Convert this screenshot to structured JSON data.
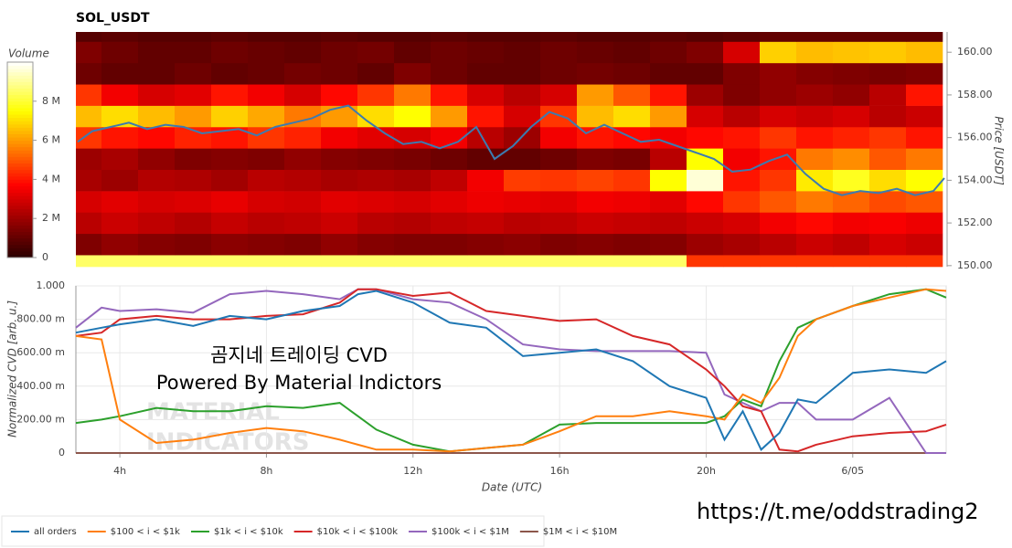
{
  "chart_data": [
    {
      "type": "heatmap",
      "title": "SOL_USDT",
      "x": [
        3,
        4,
        5,
        6,
        7,
        8,
        9,
        10,
        11,
        12,
        13,
        14,
        15,
        16,
        17,
        18,
        19,
        20,
        21,
        22,
        23,
        24,
        25,
        26
      ],
      "y": [
        150,
        151,
        152,
        153,
        154,
        155,
        156,
        157,
        158,
        159,
        160,
        161
      ],
      "z": [
        [
          8500000,
          8500000,
          8500000,
          8500000,
          8500000,
          8500000,
          8500000,
          8500000,
          8500000,
          8500000,
          8500000,
          8500000,
          8500000,
          8500000,
          8500000,
          8500000,
          8500000,
          4500000,
          4500000,
          4500000,
          4500000,
          4500000,
          4500000,
          4500000
        ],
        [
          1500000,
          1800000,
          1600000,
          1500000,
          1700000,
          1600000,
          1500000,
          1800000,
          1600000,
          1500000,
          1500000,
          1600000,
          1700000,
          1500000,
          1600000,
          1500000,
          1600000,
          2000000,
          2200000,
          2500000,
          2800000,
          2600000,
          3000000,
          2800000
        ],
        [
          2500000,
          2800000,
          2600000,
          2400000,
          2700000,
          2500000,
          2600000,
          2800000,
          2500000,
          2400000,
          2600000,
          2700000,
          2500000,
          2600000,
          2800000,
          2700000,
          2600000,
          2800000,
          3000000,
          3500000,
          3800000,
          3500000,
          3600000,
          3400000
        ],
        [
          3000000,
          3200000,
          3000000,
          3100000,
          3300000,
          3000000,
          2900000,
          3200000,
          3100000,
          3000000,
          3200000,
          3400000,
          3300000,
          3200000,
          3500000,
          3400000,
          3200000,
          3800000,
          4500000,
          5000000,
          5500000,
          5200000,
          4800000,
          5000000
        ],
        [
          2200000,
          2000000,
          2400000,
          2300000,
          2100000,
          2500000,
          2400000,
          2200000,
          2300000,
          2200000,
          2600000,
          3500000,
          4600000,
          4500000,
          4700000,
          4500000,
          7500000,
          9600000,
          4000000,
          4500000,
          7200000,
          7800000,
          7000000,
          7500000
        ],
        [
          2000000,
          2200000,
          1800000,
          1500000,
          1600000,
          1500000,
          1800000,
          1600000,
          1500000,
          1400000,
          1200000,
          1000000,
          1000000,
          1200000,
          1500000,
          1400000,
          2500000,
          7500000,
          3500000,
          4000000,
          5500000,
          5800000,
          5000000,
          5500000
        ],
        [
          4500000,
          4000000,
          3800000,
          4200000,
          4000000,
          4500000,
          4200000,
          3500000,
          3200000,
          3000000,
          3500000,
          2500000,
          2000000,
          3500000,
          4000000,
          3800000,
          3500000,
          3800000,
          4000000,
          4500000,
          4000000,
          4200000,
          4500000,
          4000000
        ],
        [
          6500000,
          7000000,
          6500000,
          6000000,
          6800000,
          6200000,
          5500000,
          6000000,
          7000000,
          7500000,
          6000000,
          4000000,
          3000000,
          4500000,
          6500000,
          7000000,
          6000000,
          3000000,
          2500000,
          3000000,
          2800000,
          3000000,
          2500000,
          2800000
        ],
        [
          4500000,
          3500000,
          3000000,
          3200000,
          4000000,
          3500000,
          3000000,
          3800000,
          4500000,
          5500000,
          4000000,
          3000000,
          2500000,
          3000000,
          6000000,
          5000000,
          4000000,
          2000000,
          1500000,
          1800000,
          2000000,
          1800000,
          2500000,
          4000000
        ],
        [
          1200000,
          1000000,
          1000000,
          1200000,
          1000000,
          1100000,
          1300000,
          1200000,
          1000000,
          1500000,
          1200000,
          1000000,
          1000000,
          1200000,
          1300000,
          1200000,
          1000000,
          1000000,
          1500000,
          1800000,
          1600000,
          1500000,
          1400000,
          1500000
        ],
        [
          1500000,
          1200000,
          1000000,
          1000000,
          1200000,
          1100000,
          1000000,
          1200000,
          1300000,
          1000000,
          1200000,
          1100000,
          1000000,
          1200000,
          1100000,
          1000000,
          1200000,
          1500000,
          3000000,
          6800000,
          6500000,
          6600000,
          6700000,
          6500000
        ],
        [
          800000,
          900000,
          800000,
          800000,
          900000,
          800000,
          800000,
          900000,
          800000,
          800000,
          900000,
          800000,
          800000,
          900000,
          800000,
          800000,
          900000,
          800000,
          900000,
          1000000,
          1000000,
          1000000,
          1000000,
          1000000
        ]
      ],
      "colormap": "hot",
      "xlim": [
        2.8,
        26.55
      ],
      "ylim": [
        149.95,
        160.95
      ],
      "yticks": [
        {
          "value": 150,
          "label": "150.00"
        },
        {
          "value": 152,
          "label": "152.00"
        },
        {
          "value": 154,
          "label": "154.00"
        },
        {
          "value": 156,
          "label": "156.00"
        },
        {
          "value": 158,
          "label": "158.00"
        },
        {
          "value": 160,
          "label": "160.00"
        }
      ],
      "y_label": "Price [USDT]",
      "colorbar": {
        "title": "Volume",
        "zlim": [
          0,
          10000000
        ],
        "ticks": [
          0,
          {
            "value": 2000000,
            "label": "2 M"
          },
          {
            "value": 4000000,
            "label": "4 M"
          },
          {
            "value": 6000000,
            "label": "6 M"
          },
          {
            "value": 8000000,
            "label": "8 M"
          }
        ]
      },
      "line": {
        "color": "#3c7bb0",
        "x": [
          2.85,
          3.25,
          3.75,
          4.25,
          4.75,
          5.25,
          5.75,
          6.25,
          6.75,
          7.25,
          7.75,
          8.25,
          8.75,
          9.25,
          9.75,
          10.25,
          10.75,
          11.25,
          11.75,
          12.25,
          12.75,
          13.25,
          13.75,
          14.25,
          14.75,
          15.25,
          15.75,
          16.25,
          16.75,
          17.25,
          17.75,
          18.25,
          18.75,
          19.25,
          19.75,
          20.25,
          20.75,
          21.25,
          21.75,
          22.25,
          22.75,
          23.25,
          23.75,
          24.25,
          24.75,
          25.25,
          25.75,
          26.25,
          26.55
        ],
        "values": [
          155.8,
          156.3,
          156.5,
          156.7,
          156.4,
          156.6,
          156.5,
          156.2,
          156.3,
          156.4,
          156.1,
          156.5,
          156.7,
          156.9,
          157.3,
          157.5,
          156.8,
          156.2,
          155.7,
          155.8,
          155.5,
          155.8,
          156.5,
          155.0,
          155.6,
          156.5,
          157.2,
          156.9,
          156.2,
          156.6,
          156.2,
          155.8,
          155.9,
          155.6,
          155.3,
          155.0,
          154.4,
          154.5,
          154.9,
          155.2,
          154.3,
          153.6,
          153.3,
          153.5,
          153.4,
          153.6,
          153.3,
          153.5,
          154.1
        ]
      }
    },
    {
      "type": "line",
      "x": [
        2.8,
        3.5,
        4,
        5,
        6,
        7,
        8,
        9,
        10,
        10.5,
        11,
        12,
        13,
        14,
        15,
        16,
        17,
        18,
        19,
        20,
        20.5,
        21,
        21.5,
        22,
        22.5,
        23,
        24,
        25,
        26,
        26.55
      ],
      "xlim": [
        2.8,
        26.55
      ],
      "xticks": [
        {
          "value": 4,
          "label": "4h"
        },
        {
          "value": 8,
          "label": "8h"
        },
        {
          "value": 12,
          "label": "12h"
        },
        {
          "value": 16,
          "label": "16h"
        },
        {
          "value": 20,
          "label": "20h"
        },
        {
          "value": 24,
          "label": "6/05"
        }
      ],
      "x_label": "Date (UTC)",
      "ylim": [
        0,
        1
      ],
      "yticks": [
        0,
        {
          "value": 0.2,
          "label": "200.00 m"
        },
        {
          "value": 0.4,
          "label": "400.00 m"
        },
        {
          "value": 0.6,
          "label": "600.00 m"
        },
        {
          "value": 0.8,
          "label": "800.00 m"
        },
        {
          "value": 1,
          "label": "1.000"
        }
      ],
      "y_label": "Normalized CVD [arb. u.]",
      "grid": true,
      "series": [
        {
          "name": "all orders",
          "color": "#1f77b4",
          "values": [
            0.72,
            0.75,
            0.77,
            0.8,
            0.76,
            0.82,
            0.8,
            0.85,
            0.88,
            0.95,
            0.97,
            0.9,
            0.78,
            0.75,
            0.58,
            0.6,
            0.62,
            0.55,
            0.4,
            0.33,
            0.08,
            0.25,
            0.02,
            0.12,
            0.32,
            0.3,
            0.48,
            0.5,
            0.48,
            0.55
          ]
        },
        {
          "name": "$100 < i < $1k",
          "color": "#ff7f0e",
          "values": [
            0.7,
            0.68,
            0.2,
            0.06,
            0.08,
            0.12,
            0.15,
            0.13,
            0.08,
            0.05,
            0.02,
            0.02,
            0.01,
            0.03,
            0.05,
            0.13,
            0.22,
            0.22,
            0.25,
            0.22,
            0.2,
            0.35,
            0.3,
            0.45,
            0.7,
            0.8,
            0.88,
            0.93,
            0.98,
            0.97
          ]
        },
        {
          "name": "$1k < i < $10k",
          "color": "#2ca02c",
          "values": [
            0.18,
            0.2,
            0.22,
            0.27,
            0.25,
            0.25,
            0.28,
            0.27,
            0.3,
            0.22,
            0.14,
            0.05,
            0.01,
            0.03,
            0.05,
            0.17,
            0.18,
            0.18,
            0.18,
            0.18,
            0.22,
            0.32,
            0.28,
            0.55,
            0.75,
            0.8,
            0.88,
            0.95,
            0.98,
            0.93
          ]
        },
        {
          "name": "$10k < i < $100k",
          "color": "#d62728",
          "values": [
            0.7,
            0.72,
            0.8,
            0.82,
            0.8,
            0.8,
            0.82,
            0.83,
            0.9,
            0.98,
            0.98,
            0.94,
            0.96,
            0.85,
            0.82,
            0.79,
            0.8,
            0.7,
            0.65,
            0.5,
            0.4,
            0.28,
            0.25,
            0.02,
            0.01,
            0.05,
            0.1,
            0.12,
            0.13,
            0.17
          ]
        },
        {
          "name": "$100k < i < $1M",
          "color": "#9467bd",
          "values": [
            0.75,
            0.87,
            0.85,
            0.86,
            0.84,
            0.95,
            0.97,
            0.95,
            0.92,
            0.98,
            0.98,
            0.92,
            0.9,
            0.8,
            0.65,
            0.62,
            0.61,
            0.61,
            0.61,
            0.6,
            0.35,
            0.3,
            0.25,
            0.3,
            0.3,
            0.2,
            0.2,
            0.33,
            0,
            0
          ]
        },
        {
          "name": "$1M < i < $10M",
          "color": "#8c564b",
          "values": [
            0,
            0,
            0,
            0,
            0,
            0,
            0,
            0,
            0,
            0,
            0,
            0,
            0,
            0,
            0,
            0,
            0,
            0,
            0,
            0,
            0,
            0,
            0,
            0,
            0,
            0,
            0,
            0,
            0,
            0
          ]
        }
      ],
      "annotations": [
        "곰지네 트레이딩 CVD",
        "Powered By Material Indictors"
      ]
    }
  ],
  "watermark": [
    "MATERIAL",
    "INDICATORS"
  ],
  "url": "https://t.me/oddstrading2"
}
